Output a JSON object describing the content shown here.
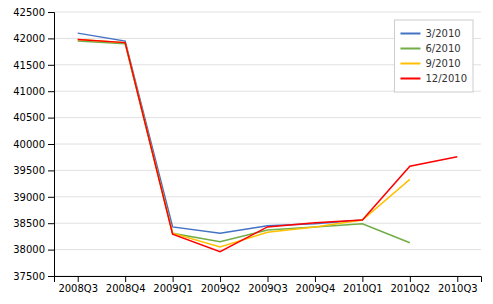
{
  "chart_data": {
    "type": "line",
    "categories": [
      "2008Q3",
      "2008Q4",
      "2009Q1",
      "2009Q2",
      "2009Q3",
      "2009Q4",
      "2010Q1",
      "2010Q2",
      "2010Q3"
    ],
    "series": [
      {
        "name": "3/2010",
        "color": "#4472c4",
        "values": [
          42100,
          41950,
          38430,
          38310,
          38450,
          38490,
          38560,
          null,
          null
        ]
      },
      {
        "name": "6/2010",
        "color": "#70ad47",
        "values": [
          41950,
          41900,
          38310,
          38150,
          38370,
          38430,
          38490,
          38130,
          null
        ]
      },
      {
        "name": "9/2010",
        "color": "#ffc000",
        "values": [
          41980,
          41920,
          38310,
          38050,
          38330,
          38430,
          38560,
          39330,
          null
        ]
      },
      {
        "name": "12/2010",
        "color": "#ff0000",
        "values": [
          41980,
          41920,
          38290,
          37960,
          38430,
          38510,
          38560,
          39580,
          39760
        ]
      }
    ],
    "ylim": [
      37500,
      42500
    ],
    "yticks": [
      37500,
      38000,
      38500,
      39000,
      39500,
      40000,
      40500,
      41000,
      41500,
      42000,
      42500
    ],
    "grid": true,
    "legend": "upper right"
  }
}
